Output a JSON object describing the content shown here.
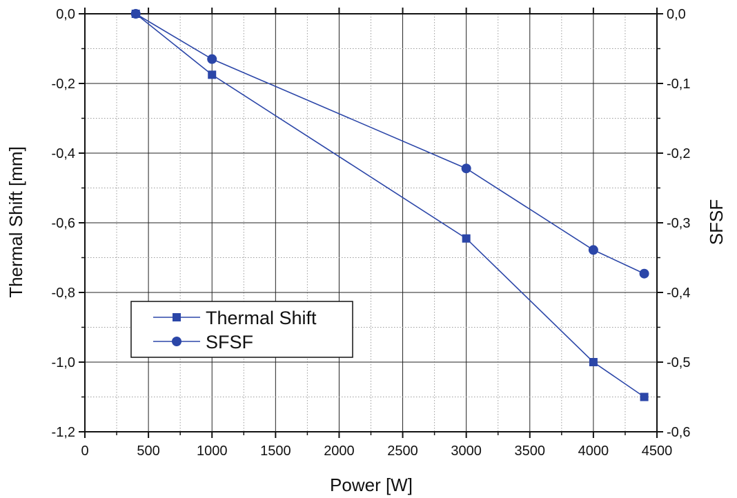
{
  "chart_data": {
    "type": "line",
    "xlabel": "Power [W]",
    "ylabel": "Thermal Shift [mm]",
    "y2label": "SFSF",
    "xlim": [
      0,
      4500
    ],
    "ylim": [
      -1.2,
      0.0
    ],
    "y2lim": [
      -0.6,
      0.0
    ],
    "x_ticks": [
      0,
      500,
      1000,
      1500,
      2000,
      2500,
      3000,
      3500,
      4000,
      4500
    ],
    "x_tick_labels": [
      "0",
      "500",
      "1000",
      "1500",
      "2000",
      "2500",
      "3000",
      "3500",
      "4000",
      "4500"
    ],
    "y_ticks": [
      0.0,
      -0.2,
      -0.4,
      -0.6,
      -0.8,
      -1.0,
      -1.2
    ],
    "y_tick_labels": [
      "0,0",
      "-0,2",
      "-0,4",
      "-0,6",
      "-0,8",
      "-1,0",
      "-1,2"
    ],
    "y2_ticks": [
      0.0,
      -0.1,
      -0.2,
      -0.3,
      -0.4,
      -0.5,
      -0.6
    ],
    "y2_tick_labels": [
      "0,0",
      "-0,1",
      "-0,2",
      "-0,3",
      "-0,4",
      "-0,5",
      "-0,6"
    ],
    "grid": true,
    "legend_position": "bottom-left",
    "series": [
      {
        "name": "Thermal Shift",
        "axis": "left",
        "marker": "square",
        "color": "#2b46a8",
        "x": [
          400,
          1000,
          3000,
          4000,
          4400
        ],
        "y": [
          0.0,
          -0.175,
          -0.645,
          -1.0,
          -1.1
        ]
      },
      {
        "name": "SFSF",
        "axis": "right",
        "marker": "circle",
        "color": "#2b46a8",
        "x": [
          400,
          1000,
          3000,
          4000,
          4400
        ],
        "y": [
          0.0,
          -0.065,
          -0.222,
          -0.339,
          -0.373
        ]
      }
    ]
  }
}
